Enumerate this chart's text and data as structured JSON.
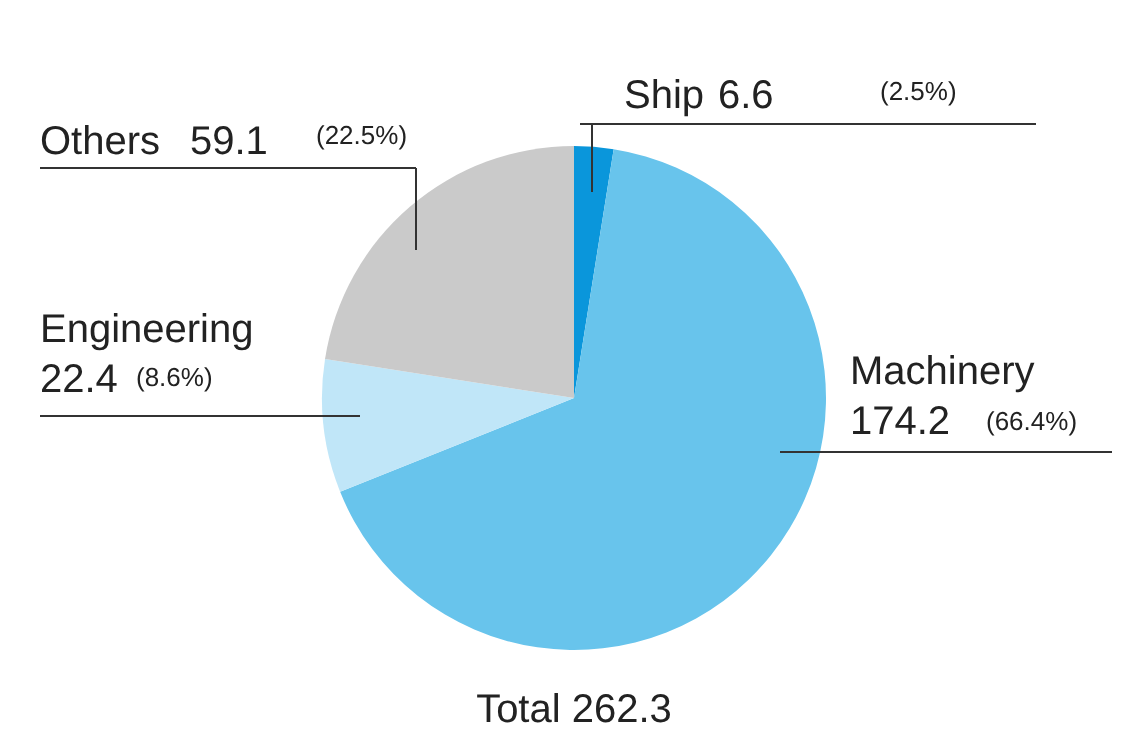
{
  "chart_data": {
    "type": "pie",
    "title": "Total 262.3",
    "categories": [
      "Ship",
      "Machinery",
      "Engineering",
      "Others"
    ],
    "values": [
      6.6,
      174.2,
      22.4,
      59.1
    ],
    "colors": [
      "#0a96db",
      "#68c4ec",
      "#c0e6f8",
      "#cacaca"
    ],
    "data_labels": true,
    "annotations": [
      "(2.5%)",
      "(66.4%)",
      "(8.6%)",
      "(22.5%)"
    ]
  }
}
